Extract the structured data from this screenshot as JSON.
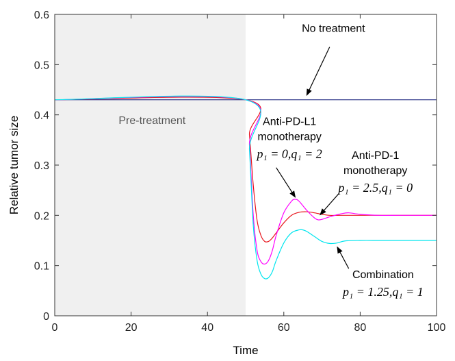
{
  "chart_data": {
    "type": "line",
    "title": "",
    "xlabel": "Time",
    "ylabel": "Relative  tumor size",
    "xlim": [
      0,
      100
    ],
    "ylim": [
      0,
      0.6
    ],
    "xticks": [
      "0",
      "20",
      "40",
      "60",
      "80",
      "100"
    ],
    "yticks": [
      "0",
      "0.1",
      "0.2",
      "0.3",
      "0.4",
      "0.5",
      "0.6"
    ],
    "grid": false,
    "shaded_region": {
      "x_start": 0,
      "x_end": 50,
      "label": "Pre-treatment",
      "color": "#f0f0f0"
    },
    "series": [
      {
        "name": "No treatment",
        "color": "#1a237e",
        "x": [
          0,
          50,
          100
        ],
        "y": [
          0.43,
          0.43,
          0.43
        ]
      },
      {
        "name": "Anti-PD-1 monotherapy",
        "color": "#e8141c",
        "x": [
          0,
          50,
          51,
          52,
          53,
          54,
          55,
          56,
          57,
          58,
          60,
          62,
          64,
          66,
          68,
          70,
          72,
          75,
          80,
          85,
          90,
          95,
          100
        ],
        "y": [
          0.43,
          0.43,
          0.36,
          0.26,
          0.19,
          0.16,
          0.148,
          0.148,
          0.155,
          0.165,
          0.185,
          0.2,
          0.206,
          0.207,
          0.205,
          0.202,
          0.2,
          0.2,
          0.2,
          0.2,
          0.2,
          0.2,
          0.2
        ]
      },
      {
        "name": "Anti-PD-L1 monotherapy",
        "color": "#ff00ff",
        "x": [
          0,
          50,
          51,
          52,
          53,
          54,
          55,
          56,
          57,
          58,
          60,
          62,
          63,
          64,
          66,
          68,
          69,
          70,
          72,
          75,
          77,
          80,
          85,
          90,
          95,
          100
        ],
        "y": [
          0.43,
          0.43,
          0.34,
          0.2,
          0.13,
          0.108,
          0.103,
          0.11,
          0.13,
          0.16,
          0.205,
          0.228,
          0.232,
          0.228,
          0.21,
          0.195,
          0.191,
          0.192,
          0.197,
          0.203,
          0.205,
          0.202,
          0.2,
          0.2,
          0.2,
          0.2
        ]
      },
      {
        "name": "Combination",
        "color": "#00e5ee",
        "x": [
          0,
          50,
          51,
          52,
          53,
          54,
          55,
          56,
          57,
          58,
          60,
          62,
          64,
          65,
          66,
          68,
          70,
          72,
          74,
          76,
          80,
          85,
          90,
          100
        ],
        "y": [
          0.43,
          0.43,
          0.33,
          0.18,
          0.11,
          0.083,
          0.074,
          0.076,
          0.088,
          0.11,
          0.145,
          0.165,
          0.171,
          0.171,
          0.168,
          0.158,
          0.148,
          0.144,
          0.145,
          0.149,
          0.15,
          0.15,
          0.15,
          0.15
        ]
      }
    ],
    "annotations": [
      {
        "name": "no-treatment",
        "lines": [
          "No treatment"
        ],
        "text_at": [
          73,
          0.565
        ],
        "arrow_from": [
          72,
          0.535
        ],
        "arrow_to": [
          66,
          0.439
        ]
      },
      {
        "name": "anti-pd-l1",
        "lines": [
          "Anti-PD-L1",
          "monotherapy"
        ],
        "formula": "p₁ = 0,q₁ = 2",
        "text_at": [
          61.5,
          0.38
        ],
        "arrow_from": [
          58,
          0.295
        ],
        "arrow_to": [
          63,
          0.236
        ]
      },
      {
        "name": "anti-pd-1",
        "lines": [
          "Anti-PD-1",
          "monotherapy"
        ],
        "formula": "p₁ = 2.5,q₁ = 0",
        "text_at": [
          84,
          0.312
        ],
        "arrow_from": [
          74.5,
          0.244
        ],
        "arrow_to": [
          69.5,
          0.201
        ]
      },
      {
        "name": "combination",
        "lines": [
          "Combination"
        ],
        "formula": "p₁ = 1.25,q₁ = 1",
        "text_at": [
          86,
          0.075
        ],
        "arrow_from": [
          77,
          0.094
        ],
        "arrow_to": [
          74,
          0.137
        ]
      }
    ]
  }
}
